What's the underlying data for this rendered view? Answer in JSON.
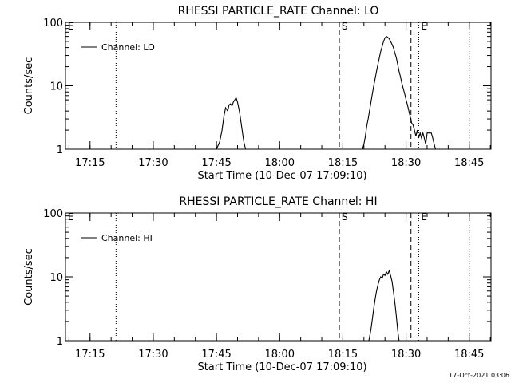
{
  "footer": {
    "timestamp": "17-Oct-2021 03:06"
  },
  "chart_data": [
    {
      "type": "line",
      "title": "RHESSI PARTICLE_RATE Channel: LO",
      "xlabel": "Start Time (10-Dec-07 17:09:10)",
      "ylabel": "Counts/sec",
      "yscale": "log",
      "ylim": [
        1,
        100
      ],
      "yticks": [
        1,
        10,
        100
      ],
      "ytick_labels": [
        "1",
        "10",
        "100"
      ],
      "xlim": [
        "17:09:10",
        "18:50:10"
      ],
      "xticks": [
        "17:15",
        "17:30",
        "17:45",
        "18:00",
        "18:15",
        "18:30",
        "18:45"
      ],
      "grid": false,
      "legend": {
        "position": "top-left",
        "entries": [
          "Channel: LO"
        ]
      },
      "markers": [
        {
          "label": "E",
          "time": "17:09:10",
          "style": "dotted",
          "labeled": true
        },
        {
          "label": "",
          "time": "17:21:10",
          "style": "dotted",
          "labeled": false
        },
        {
          "label": "S",
          "time": "18:14:10",
          "style": "dashed",
          "labeled": true
        },
        {
          "label": "",
          "time": "18:31:10",
          "style": "dashed",
          "labeled": false
        },
        {
          "label": "E",
          "time": "18:33:00",
          "style": "dotted",
          "labeled": true
        },
        {
          "label": "",
          "time": "18:45:00",
          "style": "dotted",
          "labeled": false
        }
      ],
      "series": [
        {
          "name": "Channel: LO",
          "x": [
            "17:45:00",
            "17:45:45",
            "17:46:20",
            "17:46:45",
            "17:47:10",
            "17:47:40",
            "17:48:00",
            "17:48:20",
            "17:48:40",
            "17:49:00",
            "17:49:20",
            "17:49:40",
            "17:50:00",
            "17:50:30",
            "17:51:00",
            "17:51:30",
            "17:51:55",
            "18:19:40",
            "18:20:00",
            "18:20:20",
            "18:20:40",
            "18:21:00",
            "18:21:20",
            "18:21:40",
            "18:22:00",
            "18:22:20",
            "18:22:40",
            "18:23:00",
            "18:23:20",
            "18:23:40",
            "18:24:00",
            "18:24:20",
            "18:24:40",
            "18:25:00",
            "18:25:20",
            "18:25:40",
            "18:26:00",
            "18:26:20",
            "18:26:40",
            "18:27:00",
            "18:27:20",
            "18:27:40",
            "18:28:00",
            "18:28:20",
            "18:28:40",
            "18:29:00",
            "18:29:20",
            "18:29:40",
            "18:30:00",
            "18:30:20",
            "18:30:40",
            "18:31:00",
            "18:31:20",
            "18:31:40",
            "18:32:00",
            "18:32:20",
            "18:32:40",
            "18:33:00",
            "18:33:20",
            "18:33:40",
            "18:34:00",
            "18:34:20",
            "18:34:40",
            "18:35:00",
            "18:35:30",
            "18:36:00",
            "18:36:20",
            "18:36:40",
            "18:37:00"
          ],
          "y": [
            1,
            1.3,
            2.0,
            3.2,
            4.5,
            4.0,
            5.0,
            5.2,
            4.8,
            5.5,
            6.0,
            6.5,
            5.5,
            3.8,
            2.2,
            1.3,
            1,
            1,
            1.2,
            1.6,
            2.3,
            3.0,
            4.0,
            5.5,
            7.5,
            10,
            13,
            17,
            22,
            28,
            35,
            42,
            50,
            57,
            60,
            58,
            55,
            50,
            45,
            40,
            33,
            28,
            22,
            17,
            14,
            11,
            9,
            7.5,
            6,
            5,
            4,
            3.2,
            2.6,
            2.4,
            2.0,
            1.6,
            2.0,
            1.5,
            1.8,
            1.5,
            1.8,
            1.5,
            1.2,
            1.8,
            1.8,
            1.8,
            1.5,
            1.2,
            1
          ]
        }
      ]
    },
    {
      "type": "line",
      "title": "RHESSI PARTICLE_RATE Channel: HI",
      "xlabel": "Start Time (10-Dec-07 17:09:10)",
      "ylabel": "Counts/sec",
      "yscale": "log",
      "ylim": [
        1,
        100
      ],
      "yticks": [
        1,
        10,
        100
      ],
      "ytick_labels": [
        "1",
        "10",
        "100"
      ],
      "xlim": [
        "17:09:10",
        "18:50:10"
      ],
      "xticks": [
        "17:15",
        "17:30",
        "17:45",
        "18:00",
        "18:15",
        "18:30",
        "18:45"
      ],
      "grid": false,
      "legend": {
        "position": "top-left",
        "entries": [
          "Channel: HI"
        ]
      },
      "markers": [
        {
          "label": "E",
          "time": "17:09:10",
          "style": "dotted",
          "labeled": true
        },
        {
          "label": "",
          "time": "17:21:10",
          "style": "dotted",
          "labeled": false
        },
        {
          "label": "S",
          "time": "18:14:10",
          "style": "dashed",
          "labeled": true
        },
        {
          "label": "",
          "time": "18:31:10",
          "style": "dashed",
          "labeled": false
        },
        {
          "label": "E",
          "time": "18:33:00",
          "style": "dotted",
          "labeled": true
        },
        {
          "label": "",
          "time": "18:45:00",
          "style": "dotted",
          "labeled": false
        }
      ],
      "series": [
        {
          "name": "Channel: HI",
          "x": [
            "18:21:10",
            "18:21:40",
            "18:22:00",
            "18:22:20",
            "18:22:40",
            "18:23:00",
            "18:23:20",
            "18:23:40",
            "18:24:00",
            "18:24:20",
            "18:24:40",
            "18:25:00",
            "18:25:20",
            "18:25:40",
            "18:26:00",
            "18:26:20",
            "18:26:40",
            "18:27:00",
            "18:27:20",
            "18:27:40",
            "18:28:00",
            "18:28:20"
          ],
          "y": [
            1,
            1.5,
            2.2,
            3.2,
            4.5,
            6,
            7.5,
            9,
            10,
            9.5,
            11,
            10.5,
            12,
            11,
            12.5,
            10.5,
            8.5,
            6,
            4,
            2.5,
            1.5,
            1
          ]
        }
      ]
    }
  ]
}
